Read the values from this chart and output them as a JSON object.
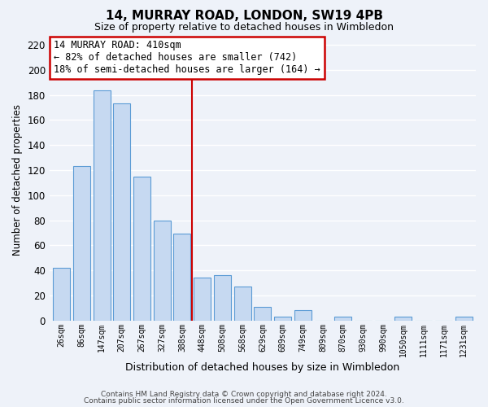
{
  "title": "14, MURRAY ROAD, LONDON, SW19 4PB",
  "subtitle": "Size of property relative to detached houses in Wimbledon",
  "xlabel": "Distribution of detached houses by size in Wimbledon",
  "ylabel": "Number of detached properties",
  "bar_labels": [
    "26sqm",
    "86sqm",
    "147sqm",
    "207sqm",
    "267sqm",
    "327sqm",
    "388sqm",
    "448sqm",
    "508sqm",
    "568sqm",
    "629sqm",
    "689sqm",
    "749sqm",
    "809sqm",
    "870sqm",
    "930sqm",
    "990sqm",
    "1050sqm",
    "1111sqm",
    "1171sqm",
    "1231sqm"
  ],
  "bar_values": [
    42,
    123,
    184,
    173,
    115,
    80,
    69,
    34,
    36,
    27,
    11,
    3,
    8,
    0,
    3,
    0,
    0,
    3,
    0,
    0,
    3
  ],
  "bar_color": "#c6d9f1",
  "bar_edge_color": "#5b9bd5",
  "vline_index": 6.5,
  "vline_color": "#cc0000",
  "ylim": [
    0,
    225
  ],
  "yticks": [
    0,
    20,
    40,
    60,
    80,
    100,
    120,
    140,
    160,
    180,
    200,
    220
  ],
  "annotation_title": "14 MURRAY ROAD: 410sqm",
  "annotation_line1": "← 82% of detached houses are smaller (742)",
  "annotation_line2": "18% of semi-detached houses are larger (164) →",
  "annotation_box_color": "#ffffff",
  "annotation_box_edge": "#cc0000",
  "footer1": "Contains HM Land Registry data © Crown copyright and database right 2024.",
  "footer2": "Contains public sector information licensed under the Open Government Licence v3.0.",
  "background_color": "#eef2f9",
  "grid_color": "#ffffff"
}
